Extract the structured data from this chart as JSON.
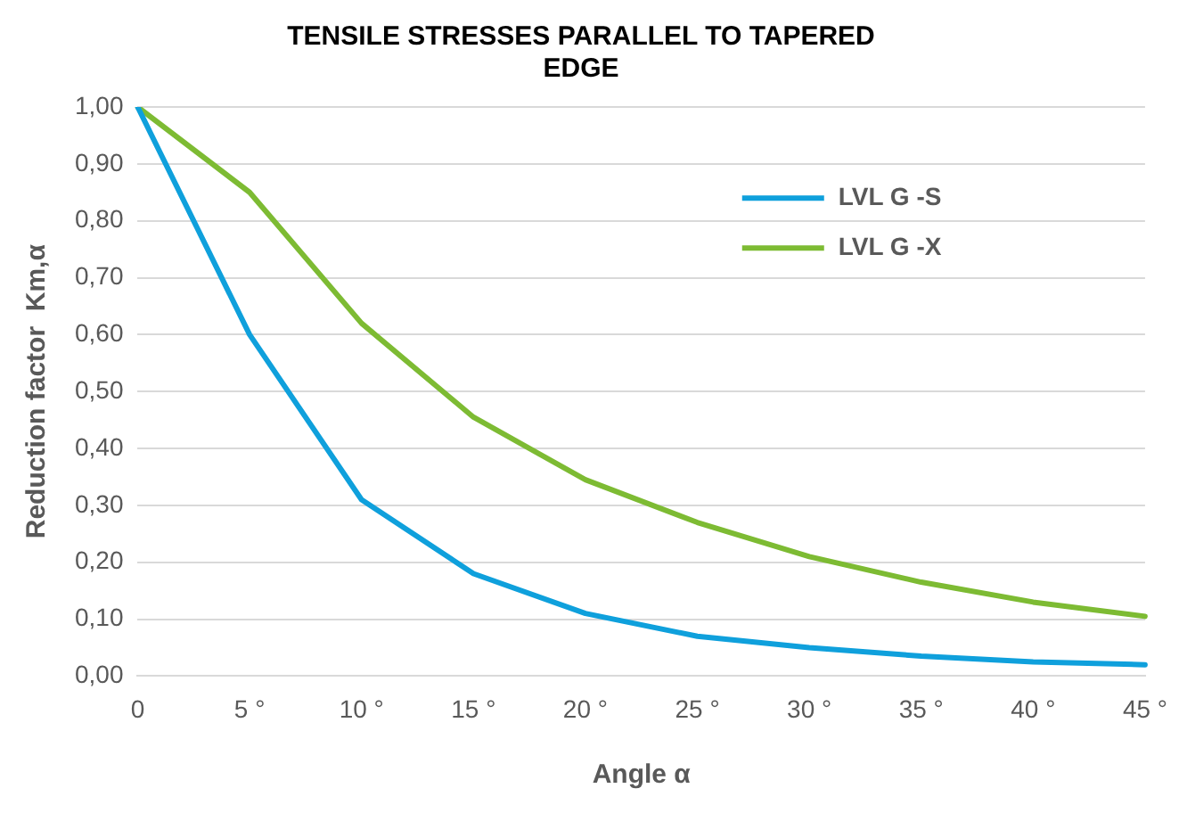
{
  "chart_data": {
    "type": "line",
    "title": "TENSILE STRESSES PARALLEL TO TAPERED EDGE",
    "xlabel": "Angle α",
    "ylabel": "Reduction factor  Km,α",
    "categories": [
      "0",
      "5 °",
      "10 °",
      "15 °",
      "20 °",
      "25 °",
      "30 °",
      "35 °",
      "40 °",
      "45 °"
    ],
    "series": [
      {
        "name": "LVL G -S",
        "color": "#0fa0dc",
        "values": [
          1.0,
          0.6,
          0.31,
          0.18,
          0.11,
          0.07,
          0.05,
          0.035,
          0.025,
          0.02
        ]
      },
      {
        "name": "LVL G -X",
        "color": "#7dbb33",
        "values": [
          1.0,
          0.85,
          0.62,
          0.455,
          0.345,
          0.27,
          0.21,
          0.165,
          0.13,
          0.105
        ]
      }
    ],
    "ylim": [
      0,
      1
    ],
    "yticks": [
      {
        "value": 0,
        "label": "0,00"
      },
      {
        "value": 0.1,
        "label": "0,10"
      },
      {
        "value": 0.2,
        "label": "0,20"
      },
      {
        "value": 0.3,
        "label": "0,30"
      },
      {
        "value": 0.4,
        "label": "0,40"
      },
      {
        "value": 0.5,
        "label": "0,50"
      },
      {
        "value": 0.6,
        "label": "0,60"
      },
      {
        "value": 0.7,
        "label": "0,70"
      },
      {
        "value": 0.8,
        "label": "0,80"
      },
      {
        "value": 0.9,
        "label": "0,90"
      },
      {
        "value": 1,
        "label": "1,00"
      }
    ],
    "grid": "y",
    "legend": "top right",
    "marker": "none",
    "line_style": "solid"
  }
}
